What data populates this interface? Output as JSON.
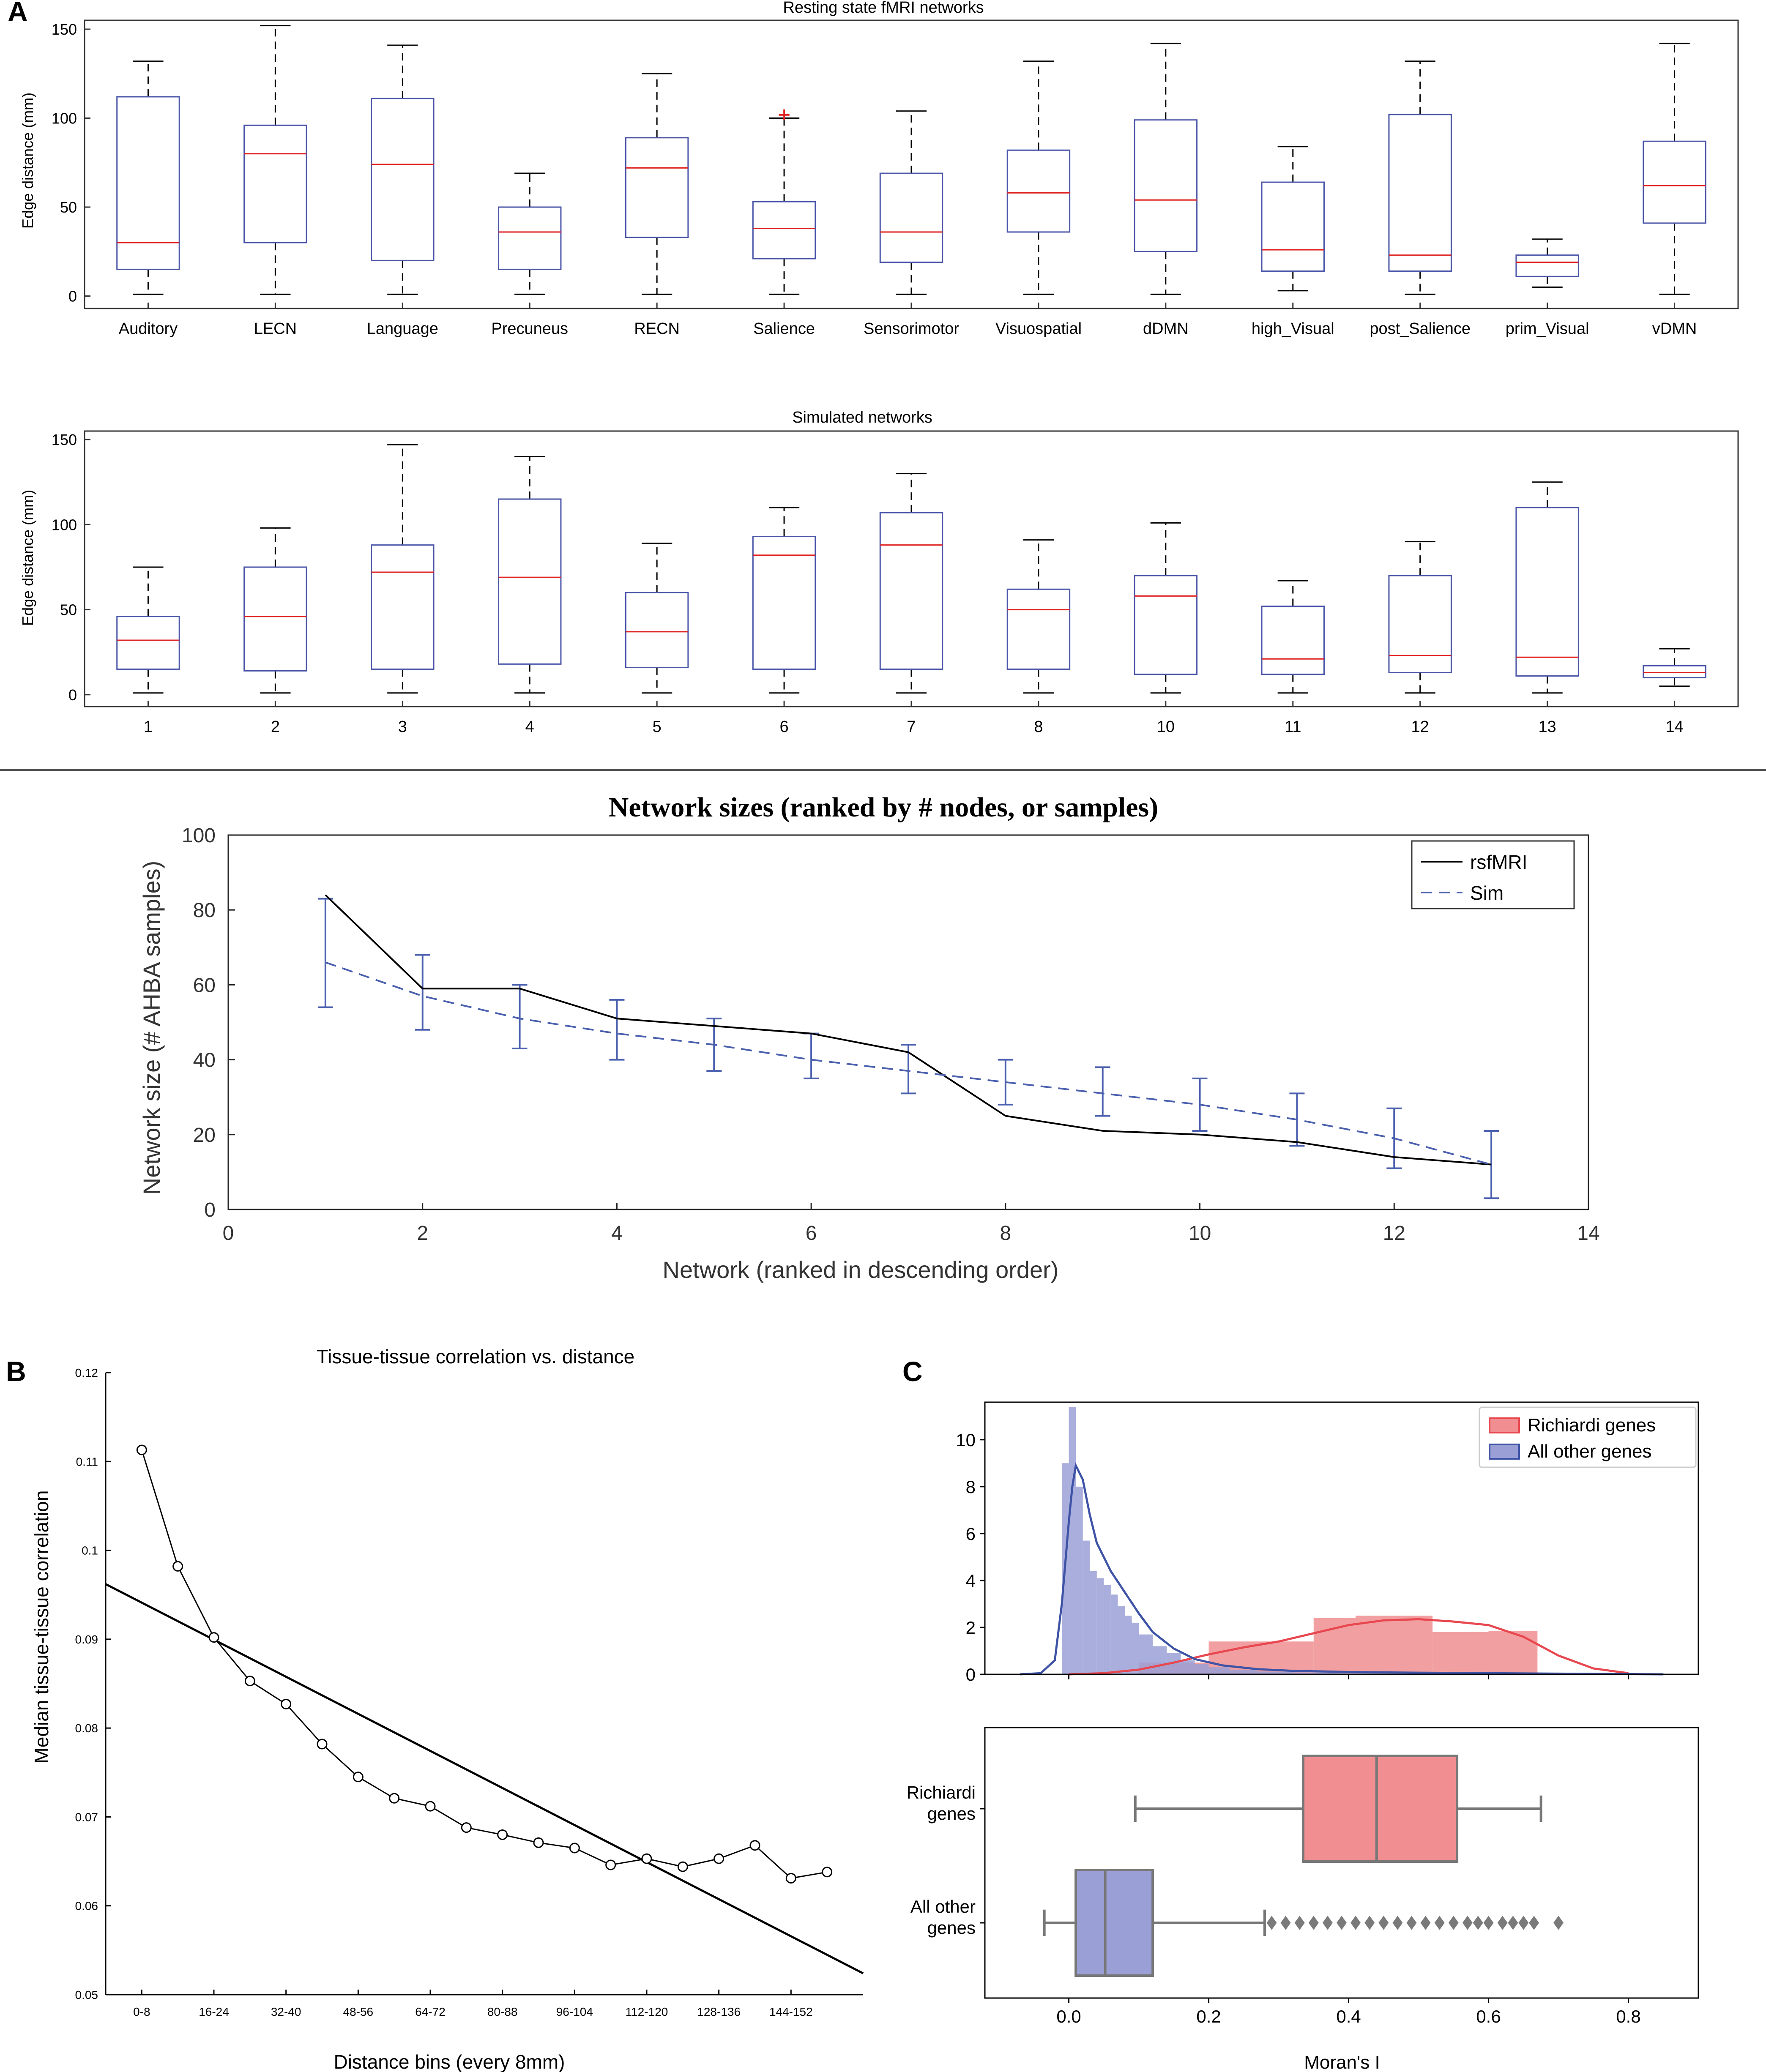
{
  "panel_labels": {
    "a": "A",
    "b": "B",
    "c": "C"
  },
  "colors": {
    "box": "#4a55a8",
    "median": "#e02020",
    "outlier": "#e02020",
    "whisker": "#000000",
    "rsf": "#000000",
    "sim": "#4a5fae",
    "red": "#e8474f",
    "red_fill": "#f08e91",
    "blue": "#3e53a6",
    "blue_fill": "#9aa0d6",
    "grey": "#777777"
  },
  "chart_data": [
    {
      "type": "box",
      "title": "Resting state fMRI networks",
      "ylabel": "Edge distance (mm)",
      "ylim": [
        -7,
        155
      ],
      "yticks": [
        0,
        50,
        100,
        150
      ],
      "categories": [
        "Auditory",
        "LECN",
        "Language",
        "Precuneus",
        "RECN",
        "Salience",
        "Sensorimotor",
        "Visuospatial",
        "dDMN",
        "high_Visual",
        "post_Salience",
        "prim_Visual",
        "vDMN"
      ],
      "boxes": [
        {
          "min": 1,
          "q1": 15,
          "median": 30,
          "q3": 112,
          "max": 132
        },
        {
          "min": 1,
          "q1": 30,
          "median": 80,
          "q3": 96,
          "max": 152
        },
        {
          "min": 1,
          "q1": 20,
          "median": 74,
          "q3": 111,
          "max": 141
        },
        {
          "min": 1,
          "q1": 15,
          "median": 36,
          "q3": 50,
          "max": 69
        },
        {
          "min": 1,
          "q1": 33,
          "median": 72,
          "q3": 89,
          "max": 125
        },
        {
          "min": 1,
          "q1": 21,
          "median": 38,
          "q3": 53,
          "max": 100,
          "outliers": [
            102
          ]
        },
        {
          "min": 1,
          "q1": 19,
          "median": 36,
          "q3": 69,
          "max": 104
        },
        {
          "min": 1,
          "q1": 36,
          "median": 58,
          "q3": 82,
          "max": 132
        },
        {
          "min": 1,
          "q1": 25,
          "median": 54,
          "q3": 99,
          "max": 142
        },
        {
          "min": 3,
          "q1": 14,
          "median": 26,
          "q3": 64,
          "max": 84
        },
        {
          "min": 1,
          "q1": 14,
          "median": 23,
          "q3": 102,
          "max": 132
        },
        {
          "min": 5,
          "q1": 11,
          "median": 19,
          "q3": 23,
          "max": 32
        },
        {
          "min": 1,
          "q1": 41,
          "median": 62,
          "q3": 87,
          "max": 142
        }
      ]
    },
    {
      "type": "box",
      "title": "Simulated networks",
      "ylabel": "Edge distance (mm)",
      "ylim": [
        -7,
        155
      ],
      "yticks": [
        0,
        50,
        100,
        150
      ],
      "categories": [
        "1",
        "2",
        "3",
        "4",
        "5",
        "6",
        "7",
        "8",
        "10",
        "11",
        "12",
        "13",
        "14"
      ],
      "boxes": [
        {
          "min": 1,
          "q1": 15,
          "median": 32,
          "q3": 46,
          "max": 75
        },
        {
          "min": 1,
          "q1": 14,
          "median": 46,
          "q3": 75,
          "max": 98
        },
        {
          "min": 1,
          "q1": 15,
          "median": 72,
          "q3": 88,
          "max": 147
        },
        {
          "min": 1,
          "q1": 18,
          "median": 69,
          "q3": 115,
          "max": 140
        },
        {
          "min": 1,
          "q1": 16,
          "median": 37,
          "q3": 60,
          "max": 89
        },
        {
          "min": 1,
          "q1": 15,
          "median": 82,
          "q3": 93,
          "max": 110
        },
        {
          "min": 1,
          "q1": 15,
          "median": 88,
          "q3": 107,
          "max": 130
        },
        {
          "min": 1,
          "q1": 15,
          "median": 50,
          "q3": 62,
          "max": 91
        },
        {
          "min": 1,
          "q1": 12,
          "median": 58,
          "q3": 70,
          "max": 101
        },
        {
          "min": 1,
          "q1": 12,
          "median": 21,
          "q3": 52,
          "max": 67
        },
        {
          "min": 1,
          "q1": 13,
          "median": 23,
          "q3": 70,
          "max": 90
        },
        {
          "min": 1,
          "q1": 11,
          "median": 22,
          "q3": 110,
          "max": 125
        },
        {
          "min": 5,
          "q1": 10,
          "median": 13,
          "q3": 17,
          "max": 27
        }
      ]
    },
    {
      "type": "line",
      "title": "Network sizes (ranked by # nodes, or samples)",
      "xlabel": "Network (ranked in descending order)",
      "ylabel": "Network size (# AHBA samples)",
      "xlim": [
        0,
        14
      ],
      "ylim": [
        0,
        100
      ],
      "xticks": [
        0,
        2,
        4,
        6,
        8,
        10,
        12,
        14
      ],
      "yticks": [
        0,
        20,
        40,
        60,
        80,
        100
      ],
      "x": [
        1,
        2,
        3,
        4,
        5,
        6,
        7,
        8,
        9,
        10,
        11,
        12,
        13
      ],
      "series": [
        {
          "name": "rsfMRI",
          "style": "solid",
          "values": [
            84,
            59,
            59,
            51,
            49,
            47,
            42,
            25,
            21,
            20,
            18,
            14,
            12
          ]
        },
        {
          "name": "Sim",
          "style": "dashed",
          "values": [
            66,
            57,
            51,
            47,
            44,
            40,
            37,
            34,
            31,
            28,
            24,
            19,
            12
          ],
          "err_low": [
            54,
            48,
            43,
            40,
            37,
            35,
            31,
            28,
            25,
            21,
            17,
            11,
            3
          ],
          "err_high": [
            83,
            68,
            60,
            56,
            51,
            47,
            44,
            40,
            38,
            35,
            31,
            27,
            21
          ]
        }
      ],
      "legend": [
        "rsfMRI",
        "Sim"
      ]
    },
    {
      "type": "scatter",
      "title": "Tissue-tissue correlation vs. distance",
      "xlabel": "Distance bins (every 8mm)",
      "ylabel": "Median tissue-tissue correlation",
      "ylim": [
        0.05,
        0.12
      ],
      "yticks": [
        "0.05",
        "0.06",
        "0.07",
        "0.08",
        "0.09",
        "0.1",
        "0.11",
        "0.12"
      ],
      "xticklabels": [
        "0-8",
        "16-24",
        "32-40",
        "48-56",
        "64-72",
        "80-88",
        "96-104",
        "112-120",
        "128-136",
        "144-152"
      ],
      "xlim": [
        -1,
        20
      ],
      "x": [
        0,
        1,
        2,
        3,
        4,
        5,
        6,
        7,
        8,
        9,
        10,
        11,
        12,
        13,
        14,
        15,
        16,
        17,
        18,
        19
      ],
      "values": [
        0.1113,
        0.0982,
        0.0902,
        0.0853,
        0.0827,
        0.0782,
        0.0745,
        0.0721,
        0.0712,
        0.0688,
        0.068,
        0.0671,
        0.0665,
        0.0646,
        0.0653,
        0.0644,
        0.0653,
        0.0668,
        0.0631,
        0.0638
      ],
      "fit_line": {
        "x": [
          -1,
          20
        ],
        "y": [
          0.0962,
          0.0524
        ]
      }
    },
    {
      "type": "histogram",
      "xlim": [
        -0.12,
        0.9
      ],
      "ylim": [
        0,
        11.6
      ],
      "yticks": [
        0,
        2,
        4,
        6,
        8,
        10
      ],
      "legend": [
        "Richiardi genes",
        "All other genes"
      ],
      "series": [
        {
          "name": "Richiardi genes",
          "bins": [
            [
              0.1,
              0.2,
              0.5
            ],
            [
              0.2,
              0.35,
              1.4
            ],
            [
              0.35,
              0.41,
              2.4
            ],
            [
              0.41,
              0.52,
              2.5
            ],
            [
              0.52,
              0.6,
              1.8
            ],
            [
              0.6,
              0.67,
              1.85
            ]
          ],
          "kde_x": [
            0.0,
            0.05,
            0.1,
            0.15,
            0.2,
            0.25,
            0.3,
            0.35,
            0.4,
            0.45,
            0.5,
            0.55,
            0.6,
            0.65,
            0.7,
            0.75,
            0.8
          ],
          "kde_y": [
            0.0,
            0.05,
            0.2,
            0.5,
            0.85,
            1.15,
            1.4,
            1.75,
            2.1,
            2.3,
            2.35,
            2.25,
            2.1,
            1.6,
            0.8,
            0.25,
            0.05
          ]
        },
        {
          "name": "All other genes",
          "bins": [
            [
              -0.01,
              0.0,
              9.0
            ],
            [
              0.0,
              0.01,
              11.4
            ],
            [
              0.01,
              0.02,
              8.0
            ],
            [
              0.02,
              0.03,
              5.7
            ],
            [
              0.03,
              0.04,
              4.4
            ],
            [
              0.04,
              0.05,
              4.1
            ],
            [
              0.05,
              0.06,
              3.8
            ],
            [
              0.06,
              0.07,
              3.4
            ],
            [
              0.07,
              0.08,
              2.9
            ],
            [
              0.08,
              0.09,
              2.5
            ],
            [
              0.09,
              0.1,
              2.2
            ],
            [
              0.1,
              0.12,
              1.7
            ],
            [
              0.12,
              0.14,
              1.2
            ],
            [
              0.14,
              0.16,
              0.9
            ],
            [
              0.16,
              0.18,
              0.6
            ],
            [
              0.18,
              0.2,
              0.45
            ],
            [
              0.2,
              0.23,
              0.3
            ],
            [
              0.23,
              0.27,
              0.2
            ],
            [
              0.27,
              0.32,
              0.12
            ],
            [
              0.32,
              0.4,
              0.08
            ],
            [
              0.4,
              0.5,
              0.05
            ],
            [
              0.5,
              0.6,
              0.03
            ],
            [
              0.6,
              0.7,
              0.02
            ]
          ],
          "kde_x": [
            -0.07,
            -0.04,
            -0.02,
            -0.01,
            0.0,
            0.005,
            0.01,
            0.02,
            0.03,
            0.04,
            0.06,
            0.08,
            0.1,
            0.12,
            0.15,
            0.18,
            0.22,
            0.27,
            0.32,
            0.4,
            0.5,
            0.6,
            0.7,
            0.8,
            0.85
          ],
          "kde_y": [
            0.0,
            0.05,
            0.6,
            3.0,
            6.5,
            8.0,
            8.9,
            8.3,
            6.8,
            5.6,
            4.4,
            3.5,
            2.6,
            1.8,
            1.1,
            0.65,
            0.38,
            0.22,
            0.15,
            0.1,
            0.07,
            0.05,
            0.03,
            0.01,
            0.0
          ]
        }
      ]
    },
    {
      "type": "box",
      "xlabel": "Moran's I",
      "xlim": [
        -0.12,
        0.9
      ],
      "xticks": [
        "0.0",
        "0.2",
        "0.4",
        "0.6",
        "0.8"
      ],
      "categories": [
        "Richiardi\ngenes",
        "All other\ngenes"
      ],
      "boxes": [
        {
          "min": 0.095,
          "q1": 0.335,
          "median": 0.44,
          "q3": 0.555,
          "max": 0.675
        },
        {
          "min": -0.035,
          "q1": 0.01,
          "median": 0.052,
          "q3": 0.12,
          "max": 0.28,
          "outliers": [
            0.29,
            0.31,
            0.33,
            0.35,
            0.37,
            0.39,
            0.41,
            0.43,
            0.45,
            0.47,
            0.49,
            0.51,
            0.53,
            0.55,
            0.57,
            0.585,
            0.6,
            0.62,
            0.635,
            0.65,
            0.665,
            0.7
          ]
        }
      ]
    }
  ]
}
